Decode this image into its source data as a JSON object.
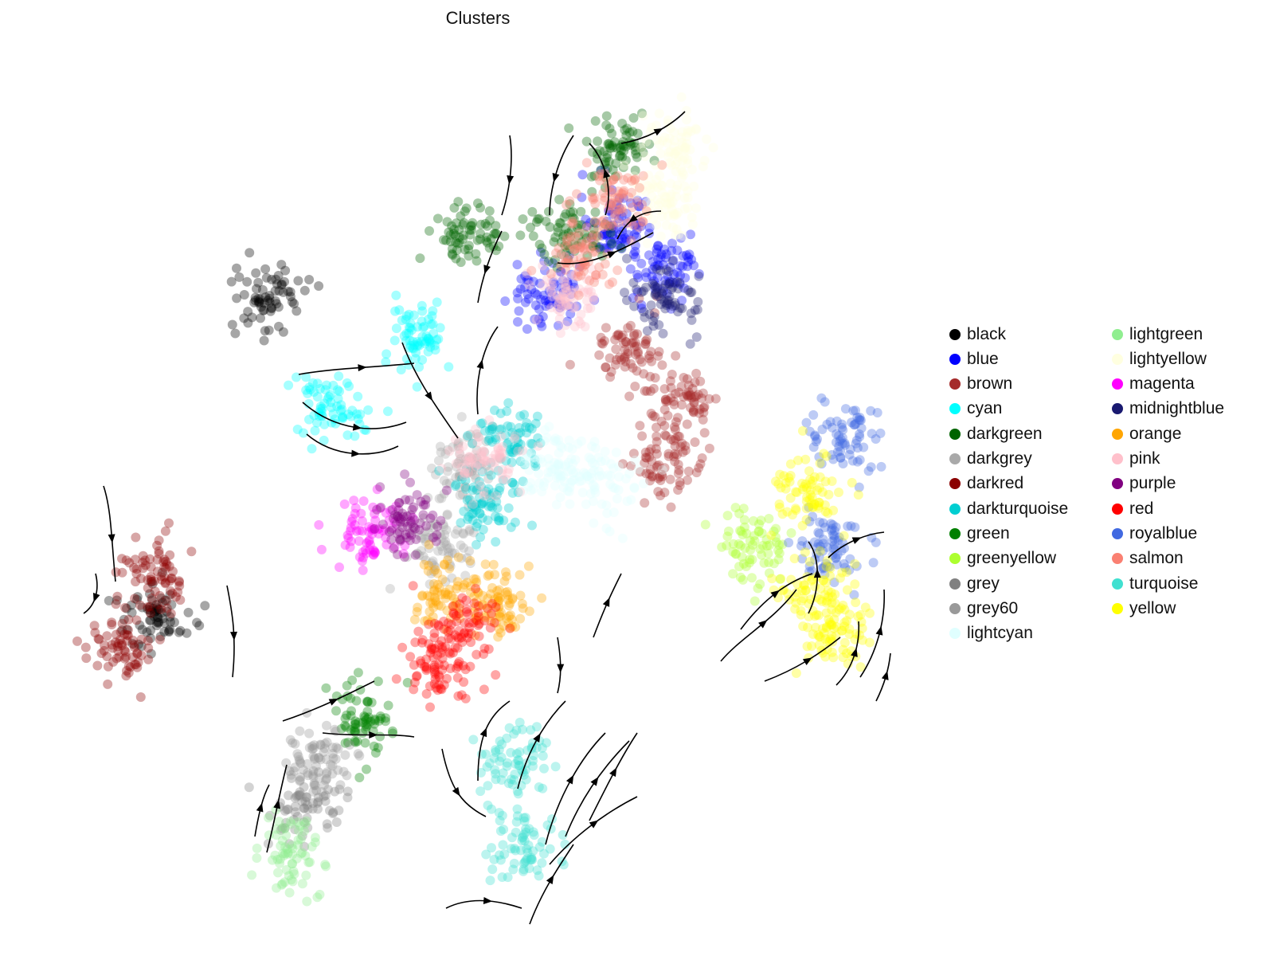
{
  "chart_data": {
    "type": "scatter",
    "title": "Clusters",
    "xlabel": "",
    "ylabel": "",
    "grid": false,
    "axes_visible": false,
    "overlay": "velocity streamlines with arrowheads (black)",
    "legend_position": "right, two columns",
    "series": [
      {
        "name": "black",
        "color": "#000000",
        "centers": [
          [
            0.14,
            0.37
          ],
          [
            0.29,
            0.74
          ]
        ]
      },
      {
        "name": "blue",
        "color": "#0000ff",
        "centers": [
          [
            0.74,
            0.83
          ],
          [
            0.65,
            0.75
          ],
          [
            0.8,
            0.78
          ]
        ]
      },
      {
        "name": "brown",
        "color": "#a52a2a",
        "centers": [
          [
            0.8,
            0.55
          ],
          [
            0.76,
            0.68
          ],
          [
            0.82,
            0.62
          ]
        ]
      },
      {
        "name": "cyan",
        "color": "#00ffff",
        "centers": [
          [
            0.37,
            0.61
          ],
          [
            0.48,
            0.7
          ]
        ]
      },
      {
        "name": "darkgreen",
        "color": "#006400",
        "centers": [
          [
            0.68,
            0.82
          ],
          [
            0.74,
            0.92
          ],
          [
            0.55,
            0.82
          ]
        ]
      },
      {
        "name": "darkgrey",
        "color": "#a9a9a9",
        "centers": [
          [
            0.51,
            0.45
          ],
          [
            0.55,
            0.55
          ]
        ]
      },
      {
        "name": "darkred",
        "color": "#8b0000",
        "centers": [
          [
            0.1,
            0.34
          ],
          [
            0.14,
            0.42
          ]
        ]
      },
      {
        "name": "darkturquoise",
        "color": "#00ced1",
        "centers": [
          [
            0.6,
            0.57
          ],
          [
            0.57,
            0.5
          ]
        ]
      },
      {
        "name": "green",
        "color": "#008000",
        "centers": [
          [
            0.41,
            0.25
          ]
        ]
      },
      {
        "name": "greenyellow",
        "color": "#adff2f",
        "centers": [
          [
            0.92,
            0.45
          ]
        ]
      },
      {
        "name": "grey",
        "color": "#808080",
        "centers": [
          [
            0.33,
            0.15
          ]
        ]
      },
      {
        "name": "grey60",
        "color": "#999999",
        "centers": [
          [
            0.35,
            0.2
          ]
        ]
      },
      {
        "name": "lightcyan",
        "color": "#e0ffff",
        "centers": [
          [
            0.66,
            0.55
          ],
          [
            0.72,
            0.53
          ]
        ]
      },
      {
        "name": "lightgreen",
        "color": "#90ee90",
        "centers": [
          [
            0.32,
            0.09
          ]
        ]
      },
      {
        "name": "lightyellow",
        "color": "#ffffe0",
        "centers": [
          [
            0.8,
            0.86
          ],
          [
            0.82,
            0.92
          ]
        ]
      },
      {
        "name": "magenta",
        "color": "#ff00ff",
        "centers": [
          [
            0.42,
            0.47
          ]
        ]
      },
      {
        "name": "midnightblue",
        "color": "#191970",
        "centers": [
          [
            0.8,
            0.74
          ]
        ]
      },
      {
        "name": "orange",
        "color": "#ffa500",
        "centers": [
          [
            0.52,
            0.4
          ],
          [
            0.59,
            0.38
          ]
        ]
      },
      {
        "name": "pink",
        "color": "#ffc0cb",
        "centers": [
          [
            0.68,
            0.75
          ],
          [
            0.57,
            0.55
          ]
        ]
      },
      {
        "name": "purple",
        "color": "#800080",
        "centers": [
          [
            0.47,
            0.48
          ]
        ]
      },
      {
        "name": "red",
        "color": "#ff0000",
        "centers": [
          [
            0.51,
            0.31
          ],
          [
            0.54,
            0.36
          ]
        ]
      },
      {
        "name": "royalblue",
        "color": "#4169e1",
        "centers": [
          [
            1.04,
            0.58
          ],
          [
            1.02,
            0.45
          ]
        ]
      },
      {
        "name": "salmon",
        "color": "#fa8072",
        "centers": [
          [
            0.7,
            0.8
          ],
          [
            0.74,
            0.86
          ]
        ]
      },
      {
        "name": "turquoise",
        "color": "#40e0d0",
        "centers": [
          [
            0.62,
            0.1
          ],
          [
            0.6,
            0.2
          ]
        ]
      },
      {
        "name": "yellow",
        "color": "#ffff00",
        "centers": [
          [
            0.99,
            0.52
          ],
          [
            1.0,
            0.4
          ],
          [
            1.03,
            0.35
          ]
        ]
      }
    ]
  }
}
